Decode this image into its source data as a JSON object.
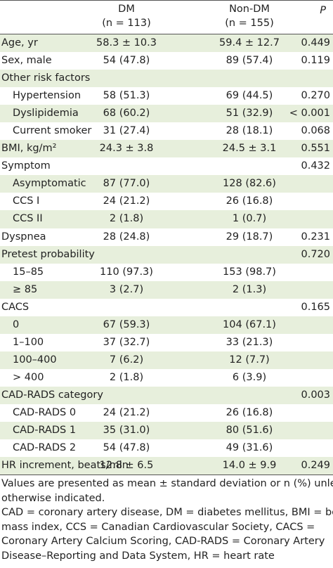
{
  "table": {
    "header": {
      "dm": [
        "DM",
        "(n = 113)"
      ],
      "non_dm": [
        "Non-DM",
        "(n = 155)"
      ],
      "p": "P"
    },
    "rows": [
      {
        "label": "Age, yr",
        "dm": "58.3 ± 10.3",
        "non_dm": "59.4 ± 12.7",
        "p": "0.449"
      },
      {
        "label": "Sex, male",
        "dm": "54 (47.8)",
        "non_dm": "89 (57.4)",
        "p": "0.119"
      },
      {
        "label": "Other risk factors",
        "items": [
          {
            "label": "Hypertension",
            "dm": "58 (51.3)",
            "non_dm": "69 (44.5)",
            "p": "0.270"
          },
          {
            "label": "Dyslipidemia",
            "dm": "68 (60.2)",
            "non_dm": "51 (32.9)",
            "p": "< 0.001"
          },
          {
            "label": "Current smoker",
            "dm": "31 (27.4)",
            "non_dm": "28 (18.1)",
            "p": "0.068"
          }
        ]
      },
      {
        "label": "BMI, kg/m²",
        "dm": "24.3 ± 3.8",
        "non_dm": "24.5 ± 3.1",
        "p": "0.551"
      },
      {
        "label": "Symptom",
        "p": "0.432",
        "items": [
          {
            "label": "Asymptomatic",
            "dm": "87 (77.0)",
            "non_dm": "128 (82.6)"
          },
          {
            "label": "CCS I",
            "dm": "24 (21.2)",
            "non_dm": "26 (16.8)"
          },
          {
            "label": "CCS II",
            "dm": "2 (1.8)",
            "non_dm": "1 (0.7)"
          }
        ]
      },
      {
        "label": "Dyspnea",
        "dm": "28 (24.8)",
        "non_dm": "29 (18.7)",
        "p": "0.231"
      },
      {
        "label": "Pretest probability",
        "p": "0.720",
        "items": [
          {
            "label": "15–85",
            "dm": "110 (97.3)",
            "non_dm": "153 (98.7)"
          },
          {
            "label": "≥ 85",
            "dm": "3 (2.7)",
            "non_dm": "2 (1.3)"
          }
        ]
      },
      {
        "label": "CACS",
        "p": "0.165",
        "items": [
          {
            "label": "0",
            "dm": "67 (59.3)",
            "non_dm": "104 (67.1)"
          },
          {
            "label": "1–100",
            "dm": "37 (32.7)",
            "non_dm": "33 (21.3)"
          },
          {
            "label": "100–400",
            "dm": "7 (6.2)",
            "non_dm": "12 (7.7)"
          },
          {
            "label": "> 400",
            "dm": "2 (1.8)",
            "non_dm": "6 (3.9)"
          }
        ]
      },
      {
        "label": "CAD-RADS category",
        "p": "0.003",
        "items": [
          {
            "label": "CAD-RADS 0",
            "dm": "24 (21.2)",
            "non_dm": "26 (16.8)"
          },
          {
            "label": "CAD-RADS 1",
            "dm": "35 (31.0)",
            "non_dm": "80 (51.6)"
          },
          {
            "label": "CAD-RADS 2",
            "dm": "54 (47.8)",
            "non_dm": "49 (31.6)"
          }
        ]
      },
      {
        "label": "HR increment, beats/min",
        "dm": "12.8 ± 6.5",
        "non_dm": "14.0 ± 9.9",
        "p": "0.249"
      }
    ],
    "notes": [
      "Values are presented as mean ± standard deviation or n (%) unless otherwise indicated.",
      "CAD = coronary artery disease, DM = diabetes mellitus, BMI = body mass index, CCS = Canadian Cardiovascular Society, CACS = Coronary Artery Calcium Scoring, CAD-RADS = Coronary Artery Disease–Reporting and Data System, HR = heart rate"
    ]
  }
}
